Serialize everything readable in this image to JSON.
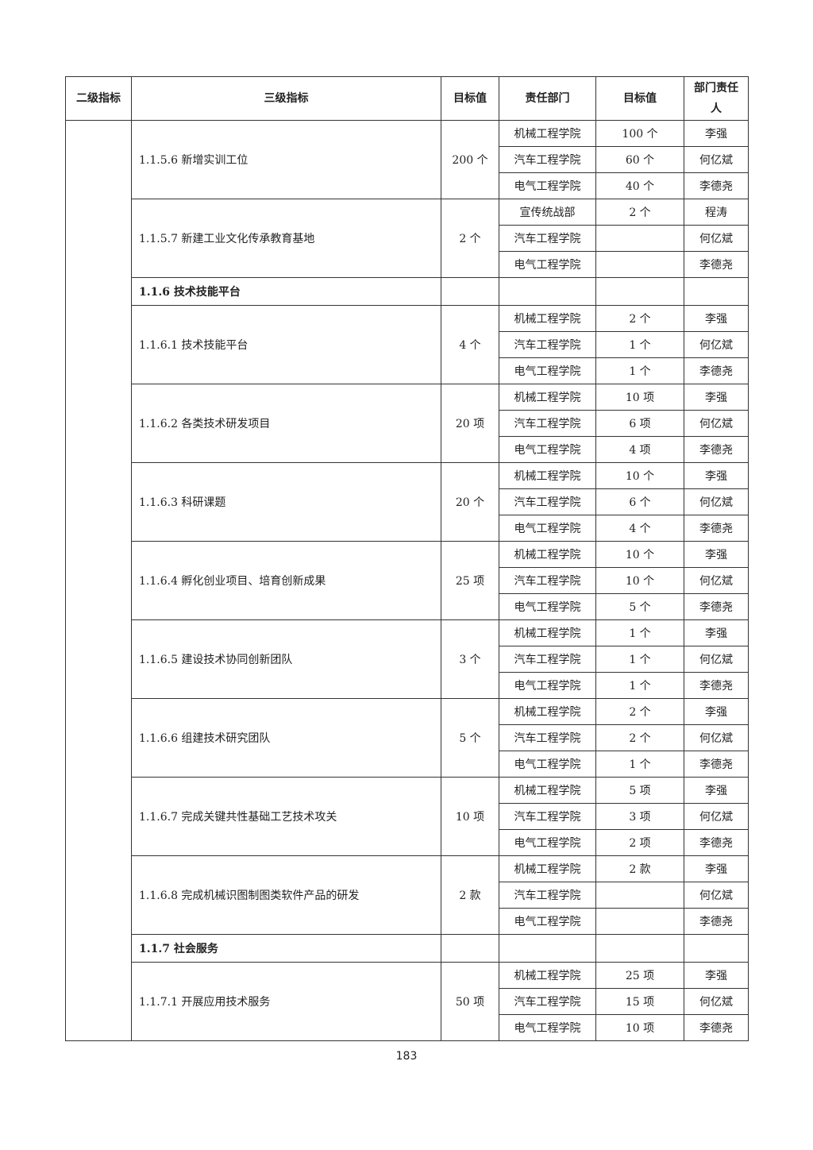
{
  "header": {
    "col1": "二级指标",
    "col2": "三级指标",
    "col3": "目标值",
    "col4": "责任部门",
    "col5": "目标值",
    "col6": "部门责任人"
  },
  "rows": [
    {
      "type": "item",
      "indicator": "1.1.5.6 新增实训工位",
      "target": "200 个",
      "depts": [
        {
          "dept": "机械工程学院",
          "target": "100 个",
          "person": "李强"
        },
        {
          "dept": "汽车工程学院",
          "target": "60 个",
          "person": "何亿斌"
        },
        {
          "dept": "电气工程学院",
          "target": "40 个",
          "person": "李德尧"
        }
      ]
    },
    {
      "type": "item",
      "indicator": "1.1.5.7 新建工业文化传承教育基地",
      "target": "2 个",
      "depts": [
        {
          "dept": "宣传统战部",
          "target": "2 个",
          "person": "程涛"
        },
        {
          "dept": "汽车工程学院",
          "target": "",
          "person": "何亿斌"
        },
        {
          "dept": "电气工程学院",
          "target": "",
          "person": "李德尧"
        }
      ]
    },
    {
      "type": "section",
      "indicator": "1.1.6 技术技能平台"
    },
    {
      "type": "item",
      "indicator": "1.1.6.1  技术技能平台",
      "target": "4 个",
      "depts": [
        {
          "dept": "机械工程学院",
          "target": "2 个",
          "person": "李强"
        },
        {
          "dept": "汽车工程学院",
          "target": "1 个",
          "person": "何亿斌"
        },
        {
          "dept": "电气工程学院",
          "target": "1 个",
          "person": "李德尧"
        }
      ]
    },
    {
      "type": "item",
      "indicator": "1.1.6.2 各类技术研发项目",
      "target": "20 项",
      "depts": [
        {
          "dept": "机械工程学院",
          "target": "10 项",
          "person": "李强"
        },
        {
          "dept": "汽车工程学院",
          "target": "6 项",
          "person": "何亿斌"
        },
        {
          "dept": "电气工程学院",
          "target": "4 项",
          "person": "李德尧"
        }
      ]
    },
    {
      "type": "item",
      "indicator": "1.1.6.3 科研课题",
      "target": "20 个",
      "depts": [
        {
          "dept": "机械工程学院",
          "target": "10 个",
          "person": "李强"
        },
        {
          "dept": "汽车工程学院",
          "target": "6 个",
          "person": "何亿斌"
        },
        {
          "dept": "电气工程学院",
          "target": "4 个",
          "person": "李德尧"
        }
      ]
    },
    {
      "type": "item",
      "indicator": "1.1.6.4  孵化创业项目、培育创新成果",
      "target": "25 项",
      "depts": [
        {
          "dept": "机械工程学院",
          "target": "10 个",
          "person": "李强"
        },
        {
          "dept": "汽车工程学院",
          "target": "10 个",
          "person": "何亿斌"
        },
        {
          "dept": "电气工程学院",
          "target": "5 个",
          "person": "李德尧"
        }
      ]
    },
    {
      "type": "item",
      "indicator": "1.1.6.5  建设技术协同创新团队",
      "target": "3 个",
      "depts": [
        {
          "dept": "机械工程学院",
          "target": "1 个",
          "person": "李强"
        },
        {
          "dept": "汽车工程学院",
          "target": "1 个",
          "person": "何亿斌"
        },
        {
          "dept": "电气工程学院",
          "target": "1 个",
          "person": "李德尧"
        }
      ]
    },
    {
      "type": "item",
      "indicator": "1.1.6.6  组建技术研究团队",
      "target": "5 个",
      "depts": [
        {
          "dept": "机械工程学院",
          "target": "2 个",
          "person": "李强"
        },
        {
          "dept": "汽车工程学院",
          "target": "2 个",
          "person": "何亿斌"
        },
        {
          "dept": "电气工程学院",
          "target": "1 个",
          "person": "李德尧"
        }
      ]
    },
    {
      "type": "item",
      "indicator": "1.1.6.7  完成关键共性基础工艺技术攻关",
      "target": "10 项",
      "depts": [
        {
          "dept": "机械工程学院",
          "target": "5 项",
          "person": "李强"
        },
        {
          "dept": "汽车工程学院",
          "target": "3 项",
          "person": "何亿斌"
        },
        {
          "dept": "电气工程学院",
          "target": "2 项",
          "person": "李德尧"
        }
      ]
    },
    {
      "type": "item",
      "indicator": "1.1.6.8  完成机械识图制图类软件产品的研发",
      "target": "2 款",
      "depts": [
        {
          "dept": "机械工程学院",
          "target": "2 款",
          "person": "李强"
        },
        {
          "dept": "汽车工程学院",
          "target": "",
          "person": "何亿斌"
        },
        {
          "dept": "电气工程学院",
          "target": "",
          "person": "李德尧"
        }
      ]
    },
    {
      "type": "section",
      "indicator": "1.1.7 社会服务"
    },
    {
      "type": "item",
      "indicator": "1.1.7.1 开展应用技术服务",
      "target": "50 项",
      "depts": [
        {
          "dept": "机械工程学院",
          "target": "25 项",
          "person": "李强"
        },
        {
          "dept": "汽车工程学院",
          "target": "15 项",
          "person": "何亿斌"
        },
        {
          "dept": "电气工程学院",
          "target": "10 项",
          "person": "李德尧"
        }
      ]
    }
  ],
  "page_number": "183"
}
